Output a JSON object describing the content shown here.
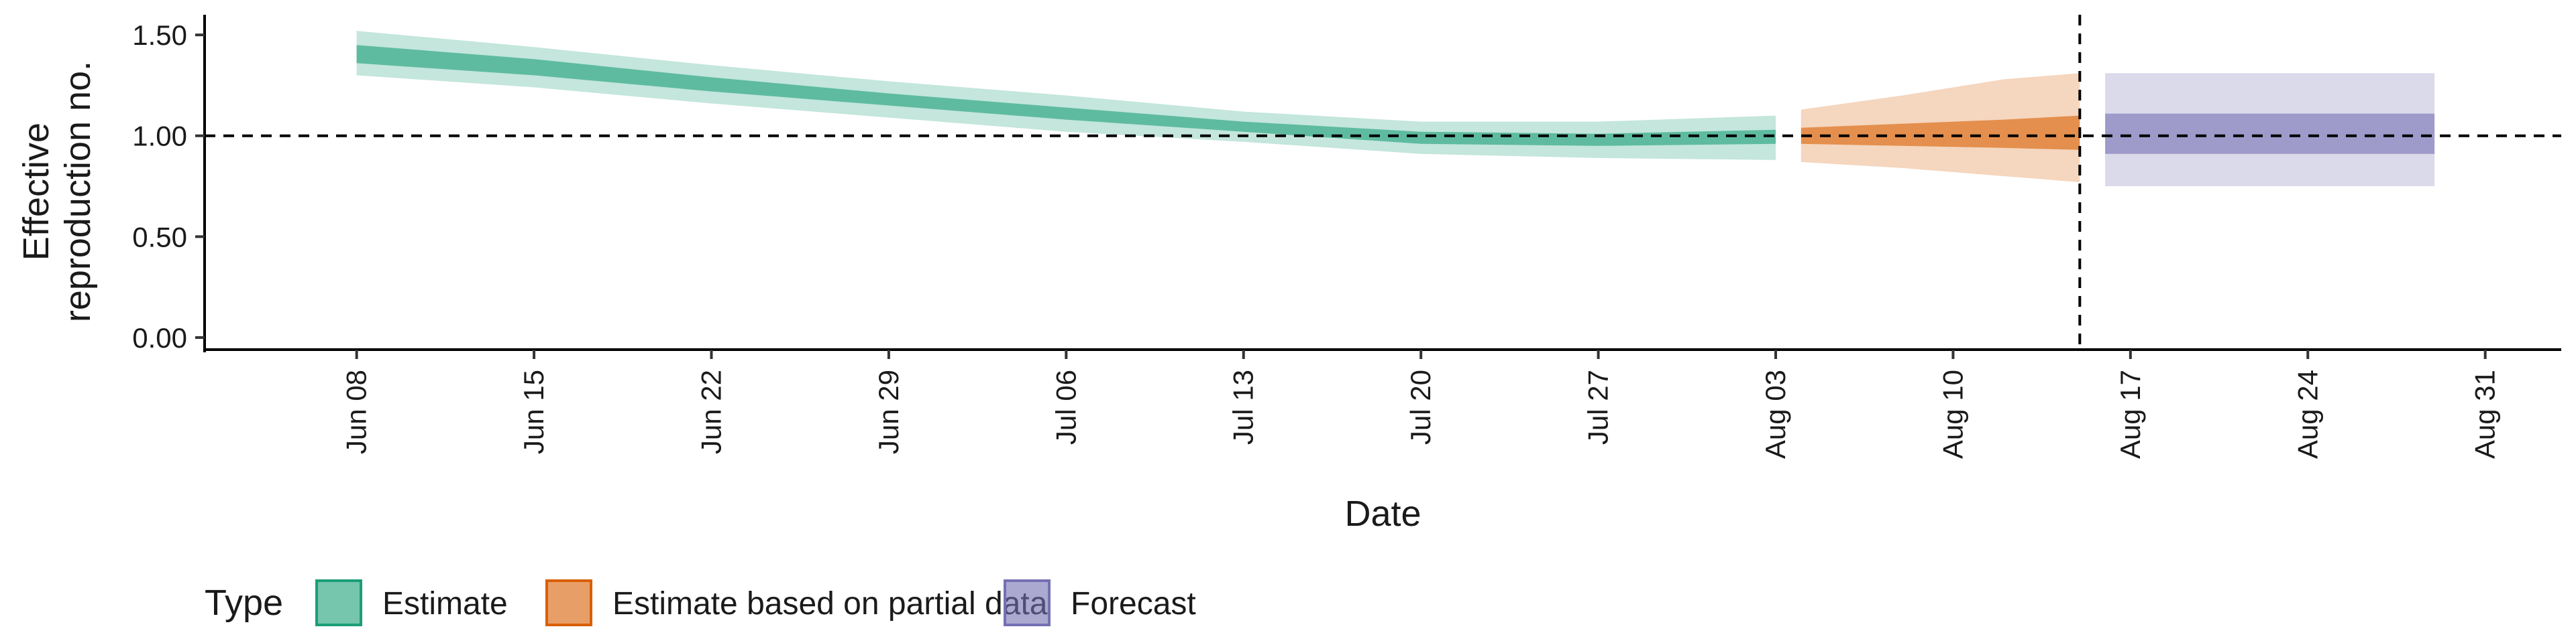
{
  "chart_data": {
    "type": "area",
    "title": "",
    "xlabel": "Date",
    "ylabel": [
      "Effective",
      "reproduction no."
    ],
    "x_range": [
      "2020-06-02",
      "2020-09-03"
    ],
    "ylim": [
      -0.06,
      1.6
    ],
    "y_ticks": [
      0.0,
      0.5,
      1.0,
      1.5
    ],
    "y_tick_labels": [
      "0.00",
      "0.50",
      "1.00",
      "1.50"
    ],
    "x_ticks": [
      "2020-06-08",
      "2020-06-15",
      "2020-06-22",
      "2020-06-29",
      "2020-07-06",
      "2020-07-13",
      "2020-07-20",
      "2020-07-27",
      "2020-08-03",
      "2020-08-10",
      "2020-08-17",
      "2020-08-24",
      "2020-08-31"
    ],
    "x_tick_labels": [
      "Jun 08",
      "Jun 15",
      "Jun 22",
      "Jun 29",
      "Jul 06",
      "Jul 13",
      "Jul 20",
      "Jul 27",
      "Aug 03",
      "Aug 10",
      "Aug 17",
      "Aug 24",
      "Aug 31"
    ],
    "reference_hline": 1.0,
    "reference_vline": "2020-08-15",
    "grid": false,
    "legend": {
      "title": "Type",
      "position": "bottom-left",
      "entries": [
        "Estimate",
        "Estimate based on partial data",
        "Forecast"
      ]
    },
    "series": [
      {
        "name": "Estimate",
        "color": "#1b9e77",
        "x": [
          "2020-06-08",
          "2020-06-15",
          "2020-06-22",
          "2020-06-29",
          "2020-07-06",
          "2020-07-13",
          "2020-07-20",
          "2020-07-27",
          "2020-08-03"
        ],
        "inner_lower": [
          1.36,
          1.3,
          1.22,
          1.15,
          1.08,
          1.02,
          0.96,
          0.95,
          0.96
        ],
        "inner_upper": [
          1.45,
          1.38,
          1.29,
          1.21,
          1.14,
          1.07,
          1.02,
          1.01,
          1.03
        ],
        "outer_lower": [
          1.3,
          1.24,
          1.16,
          1.09,
          1.02,
          0.97,
          0.91,
          0.89,
          0.88
        ],
        "outer_upper": [
          1.52,
          1.44,
          1.35,
          1.27,
          1.2,
          1.12,
          1.07,
          1.07,
          1.1
        ]
      },
      {
        "name": "Estimate based on partial data",
        "color": "#d95f02",
        "x": [
          "2020-08-04",
          "2020-08-08",
          "2020-08-12",
          "2020-08-15"
        ],
        "inner_lower": [
          0.96,
          0.95,
          0.94,
          0.93
        ],
        "inner_upper": [
          1.04,
          1.06,
          1.08,
          1.1
        ],
        "outer_lower": [
          0.87,
          0.84,
          0.8,
          0.77
        ],
        "outer_upper": [
          1.13,
          1.2,
          1.28,
          1.31
        ]
      },
      {
        "name": "Forecast",
        "color": "#7570b3",
        "x": [
          "2020-08-16",
          "2020-08-29"
        ],
        "inner_lower": [
          0.91,
          0.91
        ],
        "inner_upper": [
          1.11,
          1.11
        ],
        "outer_lower": [
          0.75,
          0.75
        ],
        "outer_upper": [
          1.31,
          1.31
        ]
      }
    ]
  },
  "colors": {
    "estimate_fill": "#1b9e77",
    "partial_fill": "#d95f02",
    "forecast_fill": "#7570b3"
  }
}
